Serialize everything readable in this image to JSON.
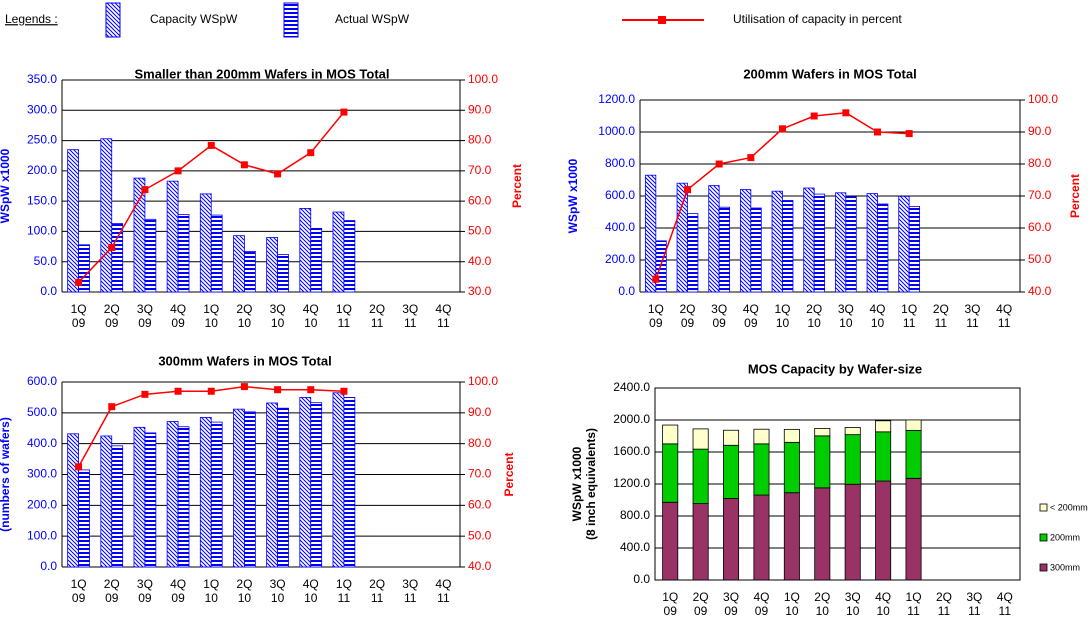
{
  "legend_title": "Legends :",
  "chart_data": [
    {
      "type": "bar_line",
      "title": "Smaller than 200mm Wafers in MOS Total",
      "y_label": "WSpW x1000",
      "y2_label": "Percent",
      "categories": [
        "1Q 09",
        "2Q 09",
        "3Q 09",
        "4Q 09",
        "1Q 10",
        "2Q 10",
        "3Q 10",
        "4Q 10",
        "1Q 11",
        "2Q 11",
        "3Q 11",
        "4Q 11"
      ],
      "series": [
        {
          "name": "Capacity WSpW",
          "color": "#0000ff",
          "pattern": "diagonal",
          "values": [
            235,
            253,
            188,
            183,
            162,
            93,
            90,
            138,
            132,
            null,
            null,
            null
          ]
        },
        {
          "name": "Actual WSpW",
          "color": "#0000ff",
          "pattern": "horizontal",
          "values": [
            78,
            113,
            120,
            128,
            127,
            67,
            62,
            105,
            118,
            null,
            null,
            null
          ]
        },
        {
          "name": "Utilisation of capacity in percent",
          "color": "#ff0000",
          "axis": "y2",
          "values": [
            33.2,
            44.7,
            63.8,
            70,
            78.4,
            72,
            69,
            76,
            89.4,
            null,
            null,
            null
          ]
        }
      ],
      "ylim": [
        0,
        350
      ],
      "yticks": [
        {
          "value": 0,
          "label": "0.0"
        },
        {
          "value": 50,
          "label": "50.0"
        },
        {
          "value": 100,
          "label": "100.0"
        },
        {
          "value": 150,
          "label": "150.0"
        },
        {
          "value": 200,
          "label": "200.0"
        },
        {
          "value": 250,
          "label": "250.0"
        },
        {
          "value": 300,
          "label": "300.0"
        },
        {
          "value": 350,
          "label": "350.0"
        }
      ],
      "y2lim": [
        30,
        100
      ],
      "y2ticks": [
        {
          "value": 30,
          "label": "30.0"
        },
        {
          "value": 40,
          "label": "40.0"
        },
        {
          "value": 50,
          "label": "50.0"
        },
        {
          "value": 60,
          "label": "60.0"
        },
        {
          "value": 70,
          "label": "70.0"
        },
        {
          "value": 80,
          "label": "80.0"
        },
        {
          "value": 90,
          "label": "90.0"
        },
        {
          "value": 100,
          "label": "100.0"
        }
      ],
      "grid": true
    },
    {
      "type": "bar_line",
      "title": "200mm Wafers in MOS Total",
      "y_label": "WSpW x1000",
      "y2_label": "Percent",
      "categories": [
        "1Q 09",
        "2Q 09",
        "3Q 09",
        "4Q 09",
        "1Q 10",
        "2Q 10",
        "3Q 10",
        "4Q 10",
        "1Q 11",
        "2Q 11",
        "3Q 11",
        "4Q 11"
      ],
      "series": [
        {
          "color": "#0000ff",
          "pattern": "diagonal",
          "values": [
            730,
            680,
            665,
            640,
            630,
            650,
            620,
            615,
            598,
            null,
            null,
            null
          ]
        },
        {
          "color": "#0000ff",
          "pattern": "horizontal",
          "values": [
            320,
            490,
            530,
            525,
            572,
            612,
            595,
            550,
            535,
            null,
            null,
            null
          ]
        },
        {
          "color": "#ff0000",
          "axis": "y2",
          "values": [
            44,
            72,
            80,
            82,
            91,
            95,
            96,
            90,
            89.5,
            null,
            null,
            null
          ]
        }
      ],
      "ylim": [
        0,
        1200
      ],
      "yticks": [
        {
          "value": 0,
          "label": "0.0"
        },
        {
          "value": 200,
          "label": "200.0"
        },
        {
          "value": 400,
          "label": "400.0"
        },
        {
          "value": 600,
          "label": "600.0"
        },
        {
          "value": 800,
          "label": "800.0"
        },
        {
          "value": 1000,
          "label": "1000.0"
        },
        {
          "value": 1200,
          "label": "1200.0"
        }
      ],
      "y2lim": [
        40,
        100
      ],
      "y2ticks": [
        {
          "value": 40,
          "label": "40.0"
        },
        {
          "value": 50,
          "label": "50.0"
        },
        {
          "value": 60,
          "label": "60.0"
        },
        {
          "value": 70,
          "label": "70.0"
        },
        {
          "value": 80,
          "label": "80.0"
        },
        {
          "value": 90,
          "label": "90.0"
        },
        {
          "value": 100,
          "label": "100.0"
        }
      ],
      "grid": true
    },
    {
      "type": "bar_line",
      "title": "300mm Wafers in MOS Total",
      "y_label": "(numbers of wafers)",
      "y2_label": "Percent",
      "categories": [
        "1Q 09",
        "2Q 09",
        "3Q 09",
        "4Q 09",
        "1Q 10",
        "2Q 10",
        "3Q 10",
        "4Q 10",
        "1Q 11",
        "2Q 11",
        "3Q 11",
        "4Q 11"
      ],
      "series": [
        {
          "color": "#0000ff",
          "pattern": "diagonal",
          "values": [
            432,
            425,
            453,
            472,
            485,
            512,
            532,
            550,
            565,
            null,
            null,
            null
          ]
        },
        {
          "color": "#0000ff",
          "pattern": "horizontal",
          "values": [
            315,
            393,
            435,
            455,
            470,
            503,
            515,
            533,
            550,
            null,
            null,
            null
          ]
        },
        {
          "color": "#ff0000",
          "axis": "y2",
          "values": [
            72.5,
            92,
            96,
            97,
            97,
            98.5,
            97.5,
            97.5,
            97,
            null,
            null,
            null
          ]
        }
      ],
      "ylim": [
        0,
        600
      ],
      "yticks": [
        {
          "value": 0,
          "label": "0.0"
        },
        {
          "value": 100,
          "label": "100.0"
        },
        {
          "value": 200,
          "label": "200.0"
        },
        {
          "value": 300,
          "label": "300.0"
        },
        {
          "value": 400,
          "label": "400.0"
        },
        {
          "value": 500,
          "label": "500.0"
        },
        {
          "value": 600,
          "label": "600.0"
        }
      ],
      "y2lim": [
        40,
        100
      ],
      "y2ticks": [
        {
          "value": 40,
          "label": "40.0"
        },
        {
          "value": 50,
          "label": "50.0"
        },
        {
          "value": 60,
          "label": "60.0"
        },
        {
          "value": 70,
          "label": "70.0"
        },
        {
          "value": 80,
          "label": "80.0"
        },
        {
          "value": 90,
          "label": "90.0"
        },
        {
          "value": 100,
          "label": "100.0"
        }
      ],
      "grid": true
    },
    {
      "type": "stacked_bar",
      "title": "MOS Capacity by Wafer-size",
      "y_label": [
        "WSpW x1000",
        "(8 inch equivalents)"
      ],
      "categories": [
        "1Q 09",
        "2Q 09",
        "3Q 09",
        "4Q 09",
        "1Q 10",
        "2Q 10",
        "3Q 10",
        "4Q 10",
        "1Q 11",
        "2Q 11",
        "3Q 11",
        "4Q 11"
      ],
      "series": [
        {
          "name": "300mm",
          "color": "#993366",
          "values": [
            972,
            956,
            1019,
            1062,
            1091,
            1152,
            1197,
            1237,
            1271,
            null,
            null,
            null
          ]
        },
        {
          "name": "200mm",
          "color": "#00cc00",
          "values": [
            730,
            680,
            665,
            640,
            630,
            650,
            620,
            615,
            598,
            null,
            null,
            null
          ]
        },
        {
          "name": "< 200mm",
          "color": "#ffffcc",
          "values": [
            235,
            253,
            188,
            183,
            162,
            93,
            90,
            138,
            132,
            null,
            null,
            null
          ]
        }
      ],
      "ylim": [
        0,
        2400
      ],
      "yticks": [
        {
          "value": 0,
          "label": "0.0"
        },
        {
          "value": 400,
          "label": "400.0"
        },
        {
          "value": 800,
          "label": "800.0"
        },
        {
          "value": 1200,
          "label": "1200.0"
        },
        {
          "value": 1600,
          "label": "1600.0"
        },
        {
          "value": 2000,
          "label": "2000.0"
        },
        {
          "value": 2400,
          "label": "2400.0"
        }
      ],
      "grid": true
    }
  ]
}
